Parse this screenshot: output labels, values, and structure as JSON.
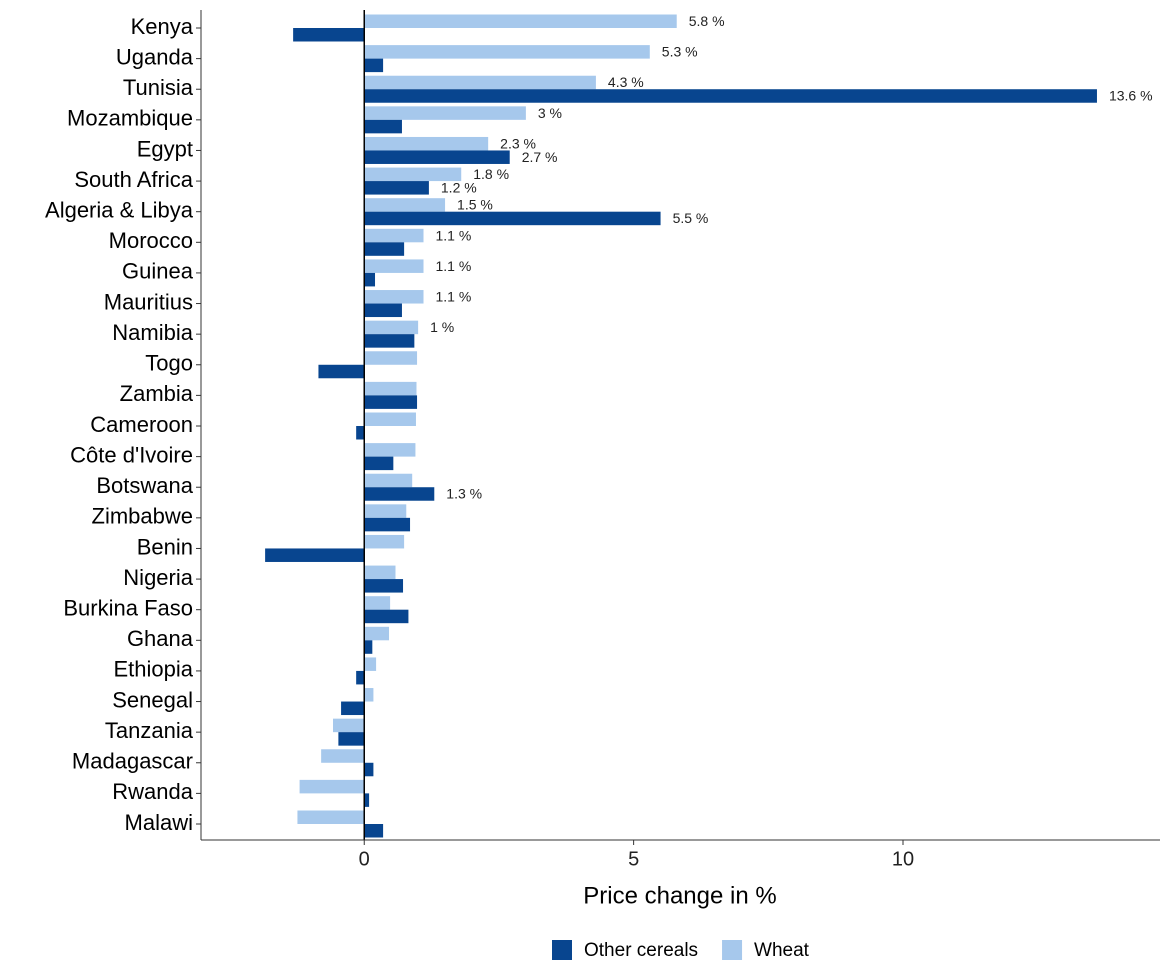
{
  "chart_data": {
    "type": "barh",
    "x_label": "Price change in %",
    "categories": [
      "Kenya",
      "Uganda",
      "Tunisia",
      "Mozambique",
      "Egypt",
      "South Africa",
      "Algeria & Libya",
      "Morocco",
      "Guinea",
      "Mauritius",
      "Namibia",
      "Togo",
      "Zambia",
      "Cameroon",
      "Côte d'Ivoire",
      "Botswana",
      "Zimbabwe",
      "Benin",
      "Nigeria",
      "Burkina Faso",
      "Ghana",
      "Ethiopia",
      "Senegal",
      "Tanzania",
      "Madagascar",
      "Rwanda",
      "Malawi"
    ],
    "series": [
      {
        "name": "Other cereals",
        "color": "#08458f",
        "values": [
          -1.32,
          0.35,
          13.6,
          0.7,
          2.7,
          1.2,
          5.5,
          0.74,
          0.2,
          0.7,
          0.93,
          -0.85,
          0.98,
          -0.15,
          0.54,
          1.3,
          0.85,
          -1.84,
          0.72,
          0.82,
          0.15,
          -0.15,
          -0.43,
          -0.48,
          0.17,
          0.09,
          0.35
        ],
        "value_labels": [
          null,
          null,
          "13.6 %",
          null,
          "2.7 %",
          "1.2 %",
          "5.5 %",
          null,
          null,
          null,
          null,
          null,
          null,
          null,
          null,
          "1.3 %",
          null,
          null,
          null,
          null,
          null,
          null,
          null,
          null,
          null,
          null,
          null
        ]
      },
      {
        "name": "Wheat",
        "color": "#a6c8ec",
        "values": [
          5.8,
          5.3,
          4.3,
          3,
          2.3,
          1.8,
          1.5,
          1.1,
          1.1,
          1.1,
          1,
          0.98,
          0.97,
          0.96,
          0.95,
          0.89,
          0.78,
          0.74,
          0.58,
          0.48,
          0.46,
          0.22,
          0.17,
          -0.58,
          -0.8,
          -1.2,
          -1.24
        ],
        "value_labels": [
          "5.8 %",
          "5.3 %",
          "4.3 %",
          "3 %",
          "2.3 %",
          "1.8 %",
          "1.5 %",
          "1.1 %",
          "1.1 %",
          "1.1 %",
          "1 %",
          null,
          null,
          null,
          null,
          null,
          null,
          null,
          null,
          null,
          null,
          null,
          null,
          null,
          null,
          null,
          null
        ]
      }
    ],
    "xlim": [
      -3.03,
      14.77
    ],
    "xticks": [
      0,
      5,
      10
    ],
    "legend": "bottom"
  }
}
